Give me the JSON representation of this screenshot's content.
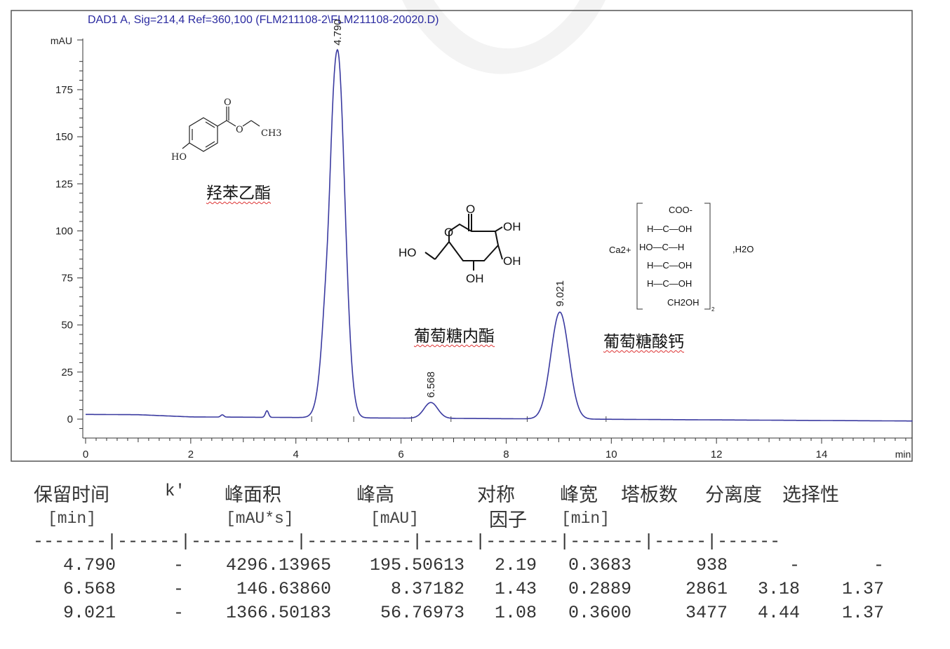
{
  "chart_data": {
    "type": "line",
    "title": "DAD1 A, Sig=214,4 Ref=360,100 (FLM211108-2\\FLM211108-20020.D)",
    "ylabel": "mAU",
    "xlabel": "min",
    "xlim": [
      0,
      15.73
    ],
    "ylim": [
      -8,
      200
    ],
    "xticks": [
      "0",
      "2",
      "4",
      "6",
      "8",
      "10",
      "12",
      "14"
    ],
    "yticks": [
      "0",
      "25",
      "50",
      "75",
      "100",
      "125",
      "150",
      "175"
    ],
    "grid": false,
    "line_color": "#3a3aa0",
    "peaks": [
      {
        "label": "4.790",
        "rt": 4.79,
        "height": 195.5
      },
      {
        "label": "6.568",
        "rt": 6.568,
        "height": 8.37
      },
      {
        "label": "9.021",
        "rt": 9.021,
        "height": 56.77
      }
    ],
    "minor_features": [
      {
        "rt": 2.6,
        "height": 1.2
      },
      {
        "rt": 3.45,
        "height": 3.5
      }
    ],
    "baseline": {
      "start": 1.5,
      "end": -1.0
    }
  },
  "compounds": [
    {
      "name": "羟苯乙酯",
      "structure_text": [
        "O",
        "O",
        "CH3",
        "HO"
      ]
    },
    {
      "name": "葡萄糖内酯",
      "structure_text": [
        "O",
        "O",
        "OH",
        "OH",
        "HO",
        "OH"
      ]
    },
    {
      "name": "葡萄糖酸钙",
      "structure_text": [
        "Ca2+",
        "COO-",
        "H—C—OH",
        "HO—C—H",
        "H—C—OH",
        "H—C—OH",
        "CH2OH",
        "2",
        ",H2O"
      ]
    }
  ],
  "table": {
    "headers": [
      "保留时间",
      "k'",
      "峰面积",
      "峰高",
      "对称",
      "峰宽",
      "塔板数",
      "分离度",
      "选择性"
    ],
    "headers_line2": [
      "[min]",
      "",
      "[mAU*s]",
      "[mAU]",
      "因子",
      "[min]",
      "",
      "",
      ""
    ],
    "separator": "-------|------|----------|----------|-----|-------|-------|-----|------",
    "rows": [
      [
        "4.790",
        "-",
        "4296.13965",
        "195.50613",
        "2.19",
        "0.3683",
        "938",
        "-",
        "-"
      ],
      [
        "6.568",
        "-",
        "146.63860",
        "8.37182",
        "1.43",
        "0.2889",
        "2861",
        "3.18",
        "1.37"
      ],
      [
        "9.021",
        "-",
        "1366.50183",
        "56.76973",
        "1.08",
        "0.3600",
        "3477",
        "4.44",
        "1.37"
      ]
    ]
  }
}
